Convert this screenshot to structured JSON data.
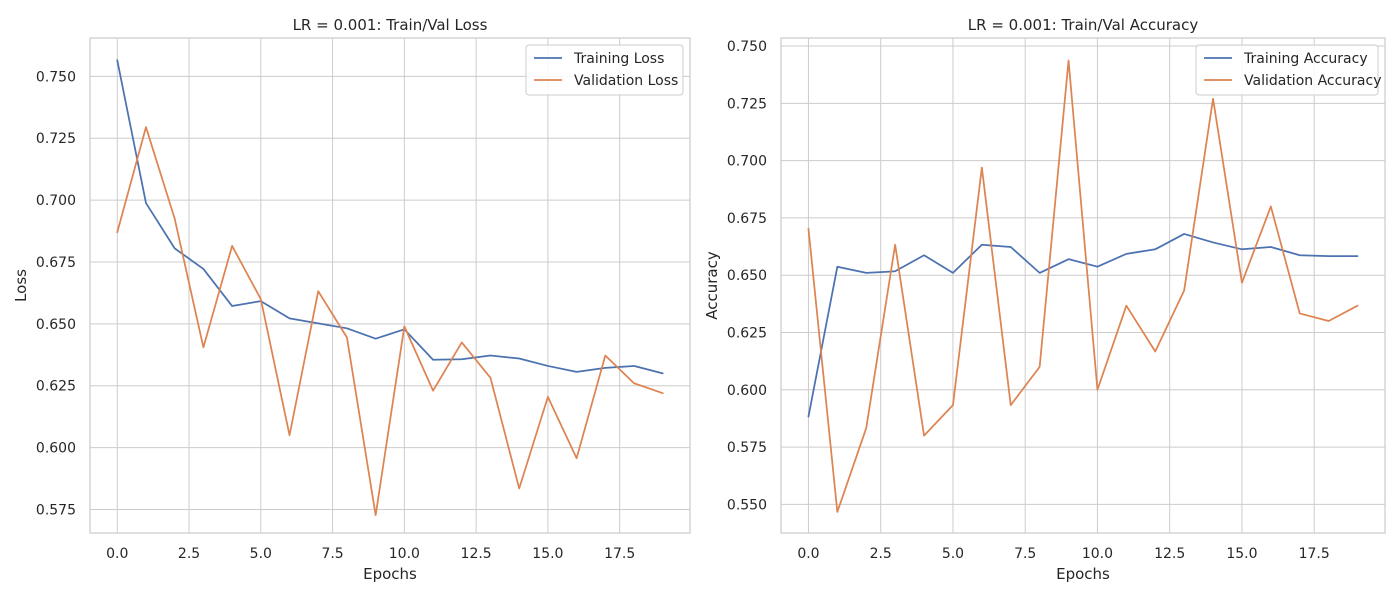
{
  "colors": {
    "training": "#4c72b0",
    "validation": "#dd8452",
    "grid": "#cccccc",
    "spine": "#cccccc",
    "background": "#ffffff"
  },
  "chart_data": [
    {
      "type": "line",
      "title": "LR = 0.001:  Train/Val Loss",
      "xlabel": "Epochs",
      "ylabel": "Loss",
      "xlim": [
        -0.95,
        19.95
      ],
      "ylim": [
        0.5655,
        0.7655
      ],
      "xticks": [
        0.0,
        2.5,
        5.0,
        7.5,
        10.0,
        12.5,
        15.0,
        17.5
      ],
      "xtick_labels": [
        "0.0",
        "2.5",
        "5.0",
        "7.5",
        "10.0",
        "12.5",
        "15.0",
        "17.5"
      ],
      "yticks": [
        0.575,
        0.6,
        0.625,
        0.65,
        0.675,
        0.7,
        0.725,
        0.75
      ],
      "ytick_labels": [
        "0.575",
        "0.600",
        "0.625",
        "0.650",
        "0.675",
        "0.700",
        "0.725",
        "0.750"
      ],
      "grid": true,
      "legend_position": "upper right",
      "x": [
        0,
        1,
        2,
        3,
        4,
        5,
        6,
        7,
        8,
        9,
        10,
        11,
        12,
        13,
        14,
        15,
        16,
        17,
        18,
        19
      ],
      "series": [
        {
          "name": "Training Loss",
          "color": "#4c72b0",
          "values": [
            0.7565,
            0.6988,
            0.6805,
            0.6722,
            0.6572,
            0.6592,
            0.6522,
            0.6502,
            0.6482,
            0.644,
            0.6478,
            0.6355,
            0.6357,
            0.6372,
            0.636,
            0.633,
            0.6306,
            0.6322,
            0.633,
            0.63
          ]
        },
        {
          "name": "Validation Loss",
          "color": "#dd8452",
          "values": [
            0.687,
            0.7295,
            0.6925,
            0.6405,
            0.6815,
            0.66,
            0.605,
            0.6632,
            0.6445,
            0.5727,
            0.649,
            0.623,
            0.6425,
            0.6282,
            0.5835,
            0.6205,
            0.5957,
            0.6372,
            0.626,
            0.622
          ]
        }
      ]
    },
    {
      "type": "line",
      "title": "LR = 0.001:  Train/Val Accuracy",
      "xlabel": "Epochs",
      "ylabel": "Accuracy",
      "xlim": [
        -0.95,
        19.95
      ],
      "ylim": [
        0.5375,
        0.7535
      ],
      "xticks": [
        0.0,
        2.5,
        5.0,
        7.5,
        10.0,
        12.5,
        15.0,
        17.5
      ],
      "xtick_labels": [
        "0.0",
        "2.5",
        "5.0",
        "7.5",
        "10.0",
        "12.5",
        "15.0",
        "17.5"
      ],
      "yticks": [
        0.55,
        0.575,
        0.6,
        0.625,
        0.65,
        0.675,
        0.7,
        0.725,
        0.75
      ],
      "ytick_labels": [
        "0.550",
        "0.575",
        "0.600",
        "0.625",
        "0.650",
        "0.675",
        "0.700",
        "0.725",
        "0.750"
      ],
      "grid": true,
      "legend_position": "upper right",
      "x": [
        0,
        1,
        2,
        3,
        4,
        5,
        6,
        7,
        8,
        9,
        10,
        11,
        12,
        13,
        14,
        15,
        16,
        17,
        18,
        19
      ],
      "series": [
        {
          "name": "Training Accuracy",
          "color": "#4c72b0",
          "values": [
            0.5883,
            0.6537,
            0.651,
            0.6517,
            0.6587,
            0.651,
            0.6633,
            0.6623,
            0.651,
            0.657,
            0.6537,
            0.6593,
            0.6613,
            0.668,
            0.6643,
            0.6613,
            0.6623,
            0.6587,
            0.6583,
            0.6583
          ]
        },
        {
          "name": "Validation Accuracy",
          "color": "#dd8452",
          "values": [
            0.6703,
            0.5467,
            0.5833,
            0.6633,
            0.58,
            0.5933,
            0.697,
            0.5933,
            0.61,
            0.7437,
            0.6,
            0.6367,
            0.6167,
            0.6433,
            0.727,
            0.6467,
            0.68,
            0.6333,
            0.63,
            0.6367
          ]
        }
      ]
    }
  ]
}
